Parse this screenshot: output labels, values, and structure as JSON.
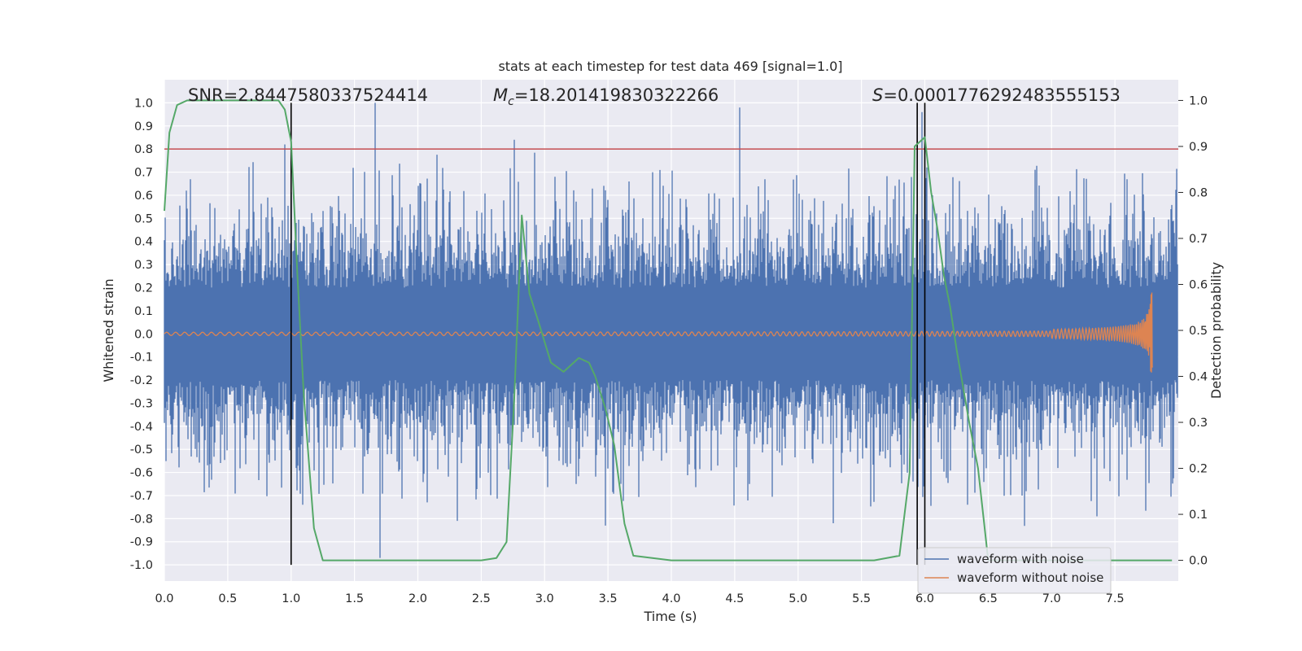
{
  "chart_data": {
    "type": "line",
    "title": "stats at each timestep for test data 469 [signal=1.0]",
    "xlabel": "Time (s)",
    "ylabel": "Whitened strain",
    "y2label": "Detection probability",
    "xlim": [
      0.0,
      8.0
    ],
    "ylim": [
      -1.07,
      1.1
    ],
    "y2lim": [
      -0.045,
      1.045
    ],
    "grid": true,
    "x_ticks": [
      "0.0",
      "0.5",
      "1.0",
      "1.5",
      "2.0",
      "2.5",
      "3.0",
      "3.5",
      "4.0",
      "4.5",
      "5.0",
      "5.5",
      "6.0",
      "6.5",
      "7.0",
      "7.5"
    ],
    "y_ticks": [
      "1.0",
      "0.9",
      "0.8",
      "0.7",
      "0.6",
      "0.5",
      "0.4",
      "0.3",
      "0.2",
      "0.1",
      "0.0",
      "-0.1",
      "-0.2",
      "-0.3",
      "-0.4",
      "-0.5",
      "-0.6",
      "-0.7",
      "-0.8",
      "-0.9",
      "-1.0"
    ],
    "y2_ticks": [
      "1.0",
      "0.9",
      "0.8",
      "0.7",
      "0.6",
      "0.5",
      "0.4",
      "0.3",
      "0.2",
      "0.1",
      "0.0"
    ],
    "annotations": {
      "snr": "SNR=2.8447580337524414",
      "mc_symbol": "M",
      "mc_sub": "c",
      "mc_value": "=18.201419830322266",
      "s_symbol": "S",
      "s_value": "=0.0001776292483555153"
    },
    "threshold": {
      "value": 0.8,
      "color": "#c44e52"
    },
    "vertical_lines": [
      1.0,
      5.94,
      6.0
    ],
    "noise_spikes": [
      {
        "x": 0.95,
        "y": 0.82
      },
      {
        "x": 1.66,
        "y": 1.0
      },
      {
        "x": 2.76,
        "y": 0.84
      },
      {
        "x": 4.54,
        "y": 0.98
      },
      {
        "x": 5.98,
        "y": 0.96
      },
      {
        "x": 1.7,
        "y": -0.97
      },
      {
        "x": 3.48,
        "y": -0.83
      },
      {
        "x": 5.28,
        "y": -0.82
      },
      {
        "x": 7.36,
        "y": -0.79
      }
    ],
    "series": [
      {
        "name": "waveform with noise",
        "color": "#4c72b0",
        "kind": "noise",
        "amplitude": 0.45,
        "t_end": 8.0
      },
      {
        "name": "waveform without noise",
        "color": "#dd8452",
        "kind": "chirp",
        "t_merge": 7.8,
        "peak_amplitude": 0.18
      },
      {
        "name": "detection probability",
        "color": "#55a868",
        "axis": "right",
        "x": [
          0.0,
          0.04,
          0.1,
          0.18,
          0.3,
          0.5,
          0.9,
          0.95,
          1.0,
          1.05,
          1.1,
          1.18,
          1.25,
          1.5,
          2.0,
          2.5,
          2.62,
          2.7,
          2.76,
          2.82,
          2.88,
          2.95,
          3.05,
          3.15,
          3.27,
          3.35,
          3.4,
          3.48,
          3.55,
          3.63,
          3.7,
          4.0,
          5.0,
          5.6,
          5.8,
          5.88,
          5.92,
          6.0,
          6.05,
          6.1,
          6.15,
          6.2,
          6.25,
          6.3,
          6.35,
          6.42,
          6.5,
          6.7,
          7.0,
          7.5,
          7.95
        ],
        "y": [
          0.76,
          0.93,
          0.99,
          1.0,
          1.0,
          1.0,
          1.0,
          0.98,
          0.91,
          0.62,
          0.36,
          0.07,
          0.0,
          0.0,
          0.0,
          0.0,
          0.005,
          0.04,
          0.35,
          0.75,
          0.58,
          0.52,
          0.43,
          0.41,
          0.44,
          0.43,
          0.4,
          0.33,
          0.25,
          0.08,
          0.01,
          0.0,
          0.0,
          0.0,
          0.01,
          0.19,
          0.9,
          0.92,
          0.8,
          0.72,
          0.62,
          0.55,
          0.46,
          0.38,
          0.3,
          0.2,
          0.0,
          0.0,
          0.0,
          0.0,
          0.0
        ]
      }
    ],
    "legend": {
      "placement": "lower-right",
      "entries": [
        "waveform with noise",
        "waveform without noise"
      ]
    }
  }
}
